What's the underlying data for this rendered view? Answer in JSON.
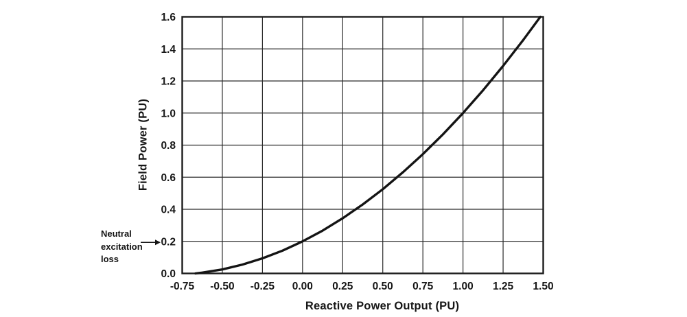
{
  "chart_data": {
    "type": "line",
    "title": "",
    "xlabel": "Reactive Power Output (PU)",
    "ylabel": "Field Power (PU)",
    "xlim": [
      -0.75,
      1.5
    ],
    "ylim": [
      0.0,
      1.6
    ],
    "x_ticks": [
      "-0.75",
      "-0.50",
      "-0.25",
      "0.00",
      "0.25",
      "0.50",
      "0.75",
      "1.00",
      "1.25",
      "1.50"
    ],
    "y_ticks": [
      "0.0",
      "0.2",
      "0.4",
      "0.6",
      "0.8",
      "1.0",
      "1.2",
      "1.4",
      "1.6"
    ],
    "grid": "on",
    "legend": "none",
    "series": [
      {
        "name": "field power curve",
        "x": [
          -0.667,
          -0.625,
          -0.5,
          -0.375,
          -0.25,
          -0.125,
          0.0,
          0.125,
          0.25,
          0.375,
          0.5,
          0.625,
          0.75,
          0.875,
          1.0,
          1.125,
          1.25,
          1.375,
          1.482
        ],
        "y": [
          0.0,
          0.005,
          0.025,
          0.055,
          0.094,
          0.142,
          0.2,
          0.267,
          0.344,
          0.43,
          0.525,
          0.63,
          0.744,
          0.867,
          1.0,
          1.142,
          1.294,
          1.455,
          1.6
        ]
      }
    ],
    "annotation": {
      "line1": "Neutral",
      "line2": "excitation",
      "line3": "loss",
      "points_to_tick": "0.2",
      "y_value": 0.2
    },
    "colors": {
      "background": "#ffffff",
      "grid": "#2a2a2a",
      "border": "#1c1c1c",
      "curve": "#141414",
      "text": "#161616"
    }
  }
}
